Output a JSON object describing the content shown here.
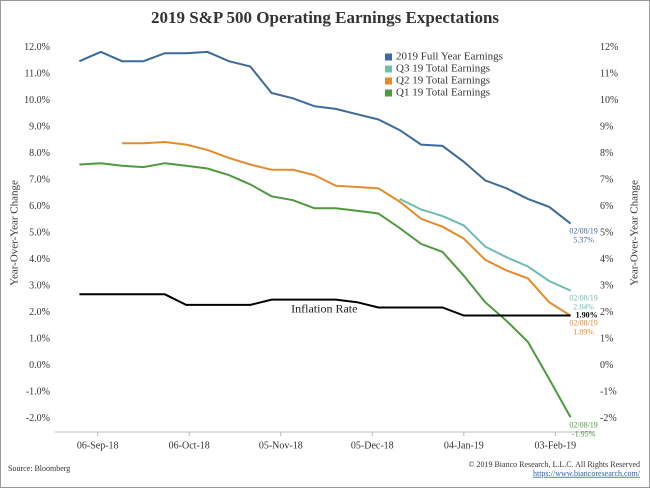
{
  "chart_data": {
    "type": "line",
    "title": "2019 S&P 500 Operating Earnings Expectations",
    "y_label": "Year-Over-Year Change",
    "y2_label": "Year-Over-Year Change",
    "source": "Source: Bloomberg",
    "copyright": "© 2019 Bianco Research, L.L.C. All Rights Reserved",
    "url": "https://www.biancoresearch.com/",
    "x": [
      "2018-08-31",
      "2018-09-07",
      "2018-09-14",
      "2018-09-21",
      "2018-09-28",
      "2018-10-05",
      "2018-10-12",
      "2018-10-19",
      "2018-10-26",
      "2018-11-02",
      "2018-11-09",
      "2018-11-16",
      "2018-11-23",
      "2018-11-30",
      "2018-12-07",
      "2018-12-14",
      "2018-12-21",
      "2018-12-28",
      "2019-01-04",
      "2019-01-11",
      "2019-01-18",
      "2019-01-25",
      "2019-02-01",
      "2019-02-08"
    ],
    "xlim": [
      "2018-08-23",
      "2019-02-16"
    ],
    "xticks": [
      {
        "value": "2018-09-06",
        "label": "06-Sep-18"
      },
      {
        "value": "2018-10-06",
        "label": "06-Oct-18"
      },
      {
        "value": "2018-11-05",
        "label": "05-Nov-18"
      },
      {
        "value": "2018-12-05",
        "label": "05-Dec-18"
      },
      {
        "value": "2019-01-04",
        "label": "04-Jan-19"
      },
      {
        "value": "2019-02-03",
        "label": "03-Feb-19"
      }
    ],
    "ylim": [
      -2.5,
      12.3
    ],
    "yticks": [
      {
        "value": -2,
        "label": "-2.0%"
      },
      {
        "value": -1,
        "label": "-1.0%"
      },
      {
        "value": 0,
        "label": "0.0%"
      },
      {
        "value": 1,
        "label": "1.0%"
      },
      {
        "value": 2,
        "label": "2.0%"
      },
      {
        "value": 3,
        "label": "3.0%"
      },
      {
        "value": 4,
        "label": "4.0%"
      },
      {
        "value": 5,
        "label": "5.0%"
      },
      {
        "value": 6,
        "label": "6.0%"
      },
      {
        "value": 7,
        "label": "7.0%"
      },
      {
        "value": 8,
        "label": "8.0%"
      },
      {
        "value": 9,
        "label": "9.0%"
      },
      {
        "value": 10,
        "label": "10.0%"
      },
      {
        "value": 11,
        "label": "11.0%"
      },
      {
        "value": 12,
        "label": "12.0%"
      }
    ],
    "y2lim": [
      -2.5,
      12.3
    ],
    "y2ticks": [
      {
        "value": -2,
        "label": "-2%"
      },
      {
        "value": -1,
        "label": "-1%"
      },
      {
        "value": 0,
        "label": "0%"
      },
      {
        "value": 1,
        "label": "1%"
      },
      {
        "value": 2,
        "label": "2%"
      },
      {
        "value": 3,
        "label": "3%"
      },
      {
        "value": 4,
        "label": "4%"
      },
      {
        "value": 5,
        "label": "5%"
      },
      {
        "value": 6,
        "label": "6%"
      },
      {
        "value": 7,
        "label": "7%"
      },
      {
        "value": 8,
        "label": "8%"
      },
      {
        "value": 9,
        "label": "9%"
      },
      {
        "value": 10,
        "label": "10%"
      },
      {
        "value": 11,
        "label": "11%"
      },
      {
        "value": 12,
        "label": "12%"
      }
    ],
    "grid": false,
    "legend": "upper-right",
    "series": [
      {
        "name": "2019 Full Year Earnings",
        "color": "#3d6a9c",
        "show_in_legend": true,
        "end_date": "02/08/19",
        "values": [
          11.5,
          11.85,
          11.5,
          11.5,
          11.8,
          11.8,
          11.85,
          11.5,
          11.3,
          10.3,
          10.1,
          9.8,
          9.7,
          9.5,
          9.3,
          8.9,
          8.35,
          8.3,
          7.7,
          7.0,
          6.7,
          6.3,
          6.0,
          5.37
        ],
        "value_labels": [
          null,
          null,
          null,
          null,
          null,
          null,
          null,
          null,
          null,
          null,
          null,
          null,
          null,
          null,
          null,
          null,
          null,
          null,
          null,
          null,
          null,
          null,
          null,
          "5.37%"
        ]
      },
      {
        "name": "Q3 19 Total Earnings",
        "color": "#6fbcb3",
        "show_in_legend": true,
        "end_date": "02/08/19",
        "values": [
          null,
          null,
          null,
          null,
          null,
          null,
          null,
          null,
          null,
          null,
          null,
          null,
          null,
          null,
          null,
          6.3,
          5.9,
          5.65,
          5.3,
          4.5,
          4.1,
          3.75,
          3.2,
          2.84
        ],
        "value_labels": [
          null,
          null,
          null,
          null,
          null,
          null,
          null,
          null,
          null,
          null,
          null,
          null,
          null,
          null,
          null,
          null,
          null,
          null,
          null,
          null,
          null,
          null,
          null,
          "2.84%"
        ]
      },
      {
        "name": "Q2 19 Total Earnings",
        "color": "#e48b2c",
        "show_in_legend": true,
        "end_date": "02/08/19",
        "values": [
          null,
          null,
          8.4,
          8.4,
          8.45,
          8.35,
          8.15,
          7.85,
          7.6,
          7.4,
          7.4,
          7.2,
          6.8,
          6.75,
          6.7,
          6.2,
          5.55,
          5.25,
          4.8,
          4.0,
          3.6,
          3.3,
          2.4,
          1.89
        ],
        "value_labels": [
          null,
          null,
          null,
          null,
          null,
          null,
          null,
          null,
          null,
          null,
          null,
          null,
          null,
          null,
          null,
          null,
          null,
          null,
          null,
          null,
          null,
          null,
          null,
          "1.89%"
        ]
      },
      {
        "name": "Q1 19 Total Earnings",
        "color": "#4f9a3e",
        "show_in_legend": true,
        "end_date": "02/08/19",
        "values": [
          7.6,
          7.65,
          7.55,
          7.5,
          7.65,
          7.55,
          7.45,
          7.2,
          6.85,
          6.4,
          6.25,
          5.95,
          5.95,
          5.85,
          5.75,
          5.2,
          4.6,
          4.3,
          3.4,
          2.4,
          1.7,
          0.9,
          -0.5,
          -1.95
        ],
        "value_labels": [
          null,
          null,
          null,
          null,
          null,
          null,
          null,
          null,
          null,
          null,
          null,
          null,
          null,
          null,
          null,
          null,
          null,
          null,
          null,
          null,
          null,
          null,
          null,
          "-1.95%"
        ]
      },
      {
        "name": "Inflation Rate",
        "color": "#000000",
        "show_in_legend": false,
        "values": [
          2.7,
          2.7,
          2.7,
          2.7,
          2.7,
          2.3,
          2.3,
          2.3,
          2.3,
          2.5,
          2.5,
          2.5,
          2.5,
          2.4,
          2.2,
          2.2,
          2.2,
          2.2,
          1.9,
          1.9,
          1.9,
          1.9,
          1.9,
          1.9
        ],
        "value_labels": [
          null,
          null,
          null,
          null,
          null,
          null,
          null,
          null,
          null,
          null,
          null,
          null,
          null,
          null,
          null,
          null,
          null,
          null,
          null,
          null,
          null,
          null,
          null,
          "1.90%"
        ]
      }
    ]
  }
}
